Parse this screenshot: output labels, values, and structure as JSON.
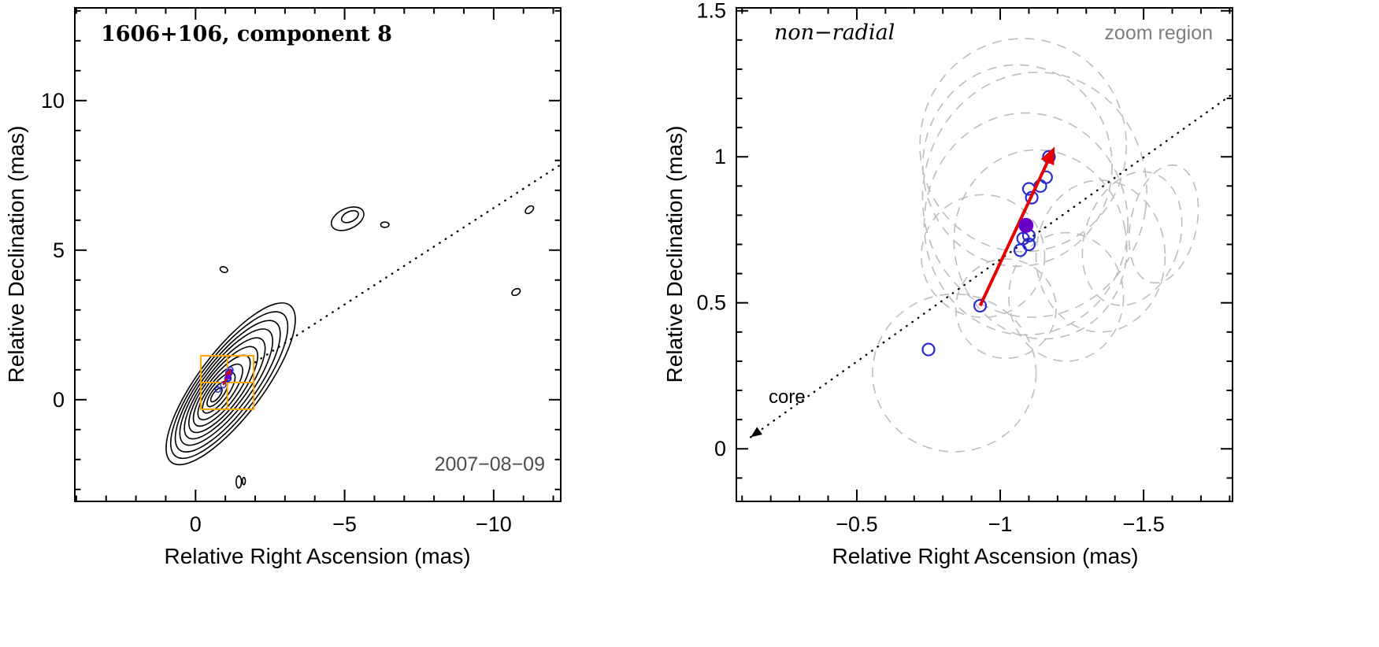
{
  "figure": {
    "background": "#ffffff"
  },
  "chart_data": [
    {
      "type": "contour",
      "panel": "left",
      "title": "1606+106, component 8",
      "date_label": "2007−08−09",
      "xlabel": "Relative Right Ascension (mas)",
      "ylabel": "Relative Declination (mas)",
      "axes": {
        "xlim": [
          4.05,
          -12.25
        ],
        "ylim": [
          -3.4,
          13.1
        ],
        "x_minor_step": 1,
        "x_major_step": 5,
        "y_minor_step": 1,
        "y_major_step": 5,
        "xticks": [
          {
            "v": 0,
            "label": "0"
          },
          {
            "v": -5,
            "label": "−5"
          },
          {
            "v": -10,
            "label": "−10"
          }
        ],
        "yticks": [
          {
            "v": 0,
            "label": "0"
          },
          {
            "v": 5,
            "label": "5"
          },
          {
            "v": 10,
            "label": "10"
          }
        ]
      },
      "colors": {
        "contour": "#000000",
        "zoom_box": "#ffa500",
        "points": "#2a2ad2",
        "mean": "#6a00c8",
        "arrow": "#e60000",
        "jet_line": "#000000",
        "date": "#4d4d4d"
      },
      "jet_ridge_line": {
        "x1": -2.0,
        "y1": 1.25,
        "x2": -12.25,
        "y2": 7.86,
        "style": "dotted"
      },
      "main_contours": [
        {
          "cx": -1.18,
          "cy": 0.53,
          "a": 3.3,
          "b": 1.08,
          "rot": -53
        },
        {
          "cx": -1.13,
          "cy": 0.49,
          "a": 2.99,
          "b": 0.98,
          "rot": -53
        },
        {
          "cx": -1.08,
          "cy": 0.45,
          "a": 2.68,
          "b": 0.88,
          "rot": -53
        },
        {
          "cx": -1.03,
          "cy": 0.42,
          "a": 2.37,
          "b": 0.78,
          "rot": -53
        },
        {
          "cx": -0.98,
          "cy": 0.38,
          "a": 2.06,
          "b": 0.68,
          "rot": -53
        },
        {
          "cx": -0.93,
          "cy": 0.34,
          "a": 1.75,
          "b": 0.59,
          "rot": -53
        },
        {
          "cx": -0.88,
          "cy": 0.3,
          "a": 1.44,
          "b": 0.49,
          "rot": -53
        },
        {
          "cx": -0.83,
          "cy": 0.26,
          "a": 1.13,
          "b": 0.39,
          "rot": -53
        },
        {
          "cx": -0.78,
          "cy": 0.23,
          "a": 0.82,
          "b": 0.29,
          "rot": -53
        },
        {
          "cx": -0.73,
          "cy": 0.19,
          "a": 0.51,
          "b": 0.19,
          "rot": -53
        },
        {
          "cx": -0.7,
          "cy": 0.16,
          "a": 0.28,
          "b": 0.11,
          "rot": -53
        }
      ],
      "extra_contours": [
        {
          "cx": -5.1,
          "cy": 6.05,
          "a": 0.58,
          "b": 0.34,
          "rot": -25
        },
        {
          "cx": -5.18,
          "cy": 6.12,
          "a": 0.3,
          "b": 0.17,
          "rot": -25
        },
        {
          "cx": -6.35,
          "cy": 5.85,
          "a": 0.14,
          "b": 0.09,
          "rot": 0
        },
        {
          "cx": -11.2,
          "cy": 6.35,
          "a": 0.16,
          "b": 0.1,
          "rot": -40
        },
        {
          "cx": -10.75,
          "cy": 3.6,
          "a": 0.15,
          "b": 0.1,
          "rot": -30
        },
        {
          "cx": -0.95,
          "cy": 4.35,
          "a": 0.13,
          "b": 0.09,
          "rot": 20
        },
        {
          "cx": -1.45,
          "cy": -2.75,
          "a": 0.09,
          "b": 0.2,
          "rot": 0
        },
        {
          "cx": -1.62,
          "cy": -2.72,
          "a": 0.05,
          "b": 0.12,
          "rot": 0
        }
      ],
      "zoom_box": {
        "x_left": -0.18,
        "x_right": -1.95,
        "y_bottom": -0.32,
        "y_top": 1.47
      },
      "component_points": [
        [
          -0.75,
          0.34
        ],
        [
          -0.93,
          0.49
        ],
        [
          -1.07,
          0.68
        ],
        [
          -1.1,
          0.7
        ],
        [
          -1.08,
          0.72
        ],
        [
          -1.1,
          0.73
        ],
        [
          -1.11,
          0.86
        ],
        [
          -1.1,
          0.89
        ],
        [
          -1.14,
          0.9
        ],
        [
          -1.16,
          0.93
        ],
        [
          -1.17,
          1.0
        ]
      ],
      "mean_point": [
        -1.09,
        0.765
      ],
      "motion_arrow": {
        "x1": -0.93,
        "y1": 0.49,
        "x2": -1.19,
        "y2": 1.035
      }
    },
    {
      "type": "scatter",
      "panel": "right",
      "annotation_left": "non−radial",
      "annotation_right": "zoom region",
      "core_label": "core",
      "xlabel": "Relative Right Ascension (mas)",
      "ylabel": "Relative Declination (mas)",
      "axes": {
        "xlim": [
          -0.08,
          -1.81
        ],
        "ylim": [
          -0.18,
          1.51
        ],
        "x_minor_step": 0.1,
        "x_major_step": 0.5,
        "y_minor_step": 0.1,
        "y_major_step": 0.5,
        "xticks": [
          {
            "v": -0.5,
            "label": "−0.5"
          },
          {
            "v": -1,
            "label": "−1"
          },
          {
            "v": -1.5,
            "label": "−1.5"
          }
        ],
        "yticks": [
          {
            "v": 0,
            "label": "0"
          },
          {
            "v": 0.5,
            "label": "0.5"
          },
          {
            "v": 1,
            "label": "1"
          },
          {
            "v": 1.5,
            "label": "1.5"
          }
        ]
      },
      "colors": {
        "beam": "#bdbdbd",
        "points": "#2a2ad2",
        "mean": "#6a00c8",
        "arrow": "#e60000",
        "radial_line": "#000000",
        "zoom_label": "#7f7f7f"
      },
      "radial_line": {
        "x1": -0.13,
        "y1": 0.04,
        "x2": -1.81,
        "y2": 1.215,
        "style": "dotted",
        "arrow_at_start": true
      },
      "beam_ellipses": [
        {
          "cx": -0.84,
          "cy": 0.26,
          "a": 0.285,
          "b": 0.27,
          "rot": 0
        },
        {
          "cx": -1.02,
          "cy": 0.48,
          "a": 0.175,
          "b": 0.17,
          "rot": 0
        },
        {
          "cx": -0.94,
          "cy": 0.66,
          "a": 0.215,
          "b": 0.21,
          "rot": 0
        },
        {
          "cx": -1.09,
          "cy": 0.77,
          "a": 0.355,
          "b": 0.38,
          "rot": 0
        },
        {
          "cx": -1.12,
          "cy": 0.87,
          "a": 0.39,
          "b": 0.42,
          "rot": 8
        },
        {
          "cx": -1.06,
          "cy": 0.97,
          "a": 0.33,
          "b": 0.345,
          "rot": 0
        },
        {
          "cx": -1.08,
          "cy": 1.04,
          "a": 0.36,
          "b": 0.365,
          "rot": 0
        },
        {
          "cx": -1.14,
          "cy": 0.7,
          "a": 0.3,
          "b": 0.325,
          "rot": -12
        },
        {
          "cx": -1.23,
          "cy": 0.52,
          "a": 0.2,
          "b": 0.22,
          "rot": 0
        },
        {
          "cx": -1.35,
          "cy": 0.66,
          "a": 0.225,
          "b": 0.26,
          "rot": 0
        },
        {
          "cx": -1.46,
          "cy": 0.72,
          "a": 0.165,
          "b": 0.235,
          "rot": 18
        },
        {
          "cx": -1.57,
          "cy": 0.77,
          "a": 0.115,
          "b": 0.205,
          "rot": 12
        }
      ],
      "component_points": [
        [
          -0.75,
          0.34
        ],
        [
          -0.93,
          0.49
        ],
        [
          -1.07,
          0.68
        ],
        [
          -1.1,
          0.7
        ],
        [
          -1.08,
          0.72
        ],
        [
          -1.1,
          0.73
        ],
        [
          -1.11,
          0.86
        ],
        [
          -1.1,
          0.89
        ],
        [
          -1.14,
          0.9
        ],
        [
          -1.16,
          0.93
        ],
        [
          -1.17,
          1.0
        ]
      ],
      "mean_point": [
        -1.09,
        0.765
      ],
      "motion_arrow": {
        "x1": -0.93,
        "y1": 0.49,
        "x2": -1.19,
        "y2": 1.035
      }
    }
  ]
}
